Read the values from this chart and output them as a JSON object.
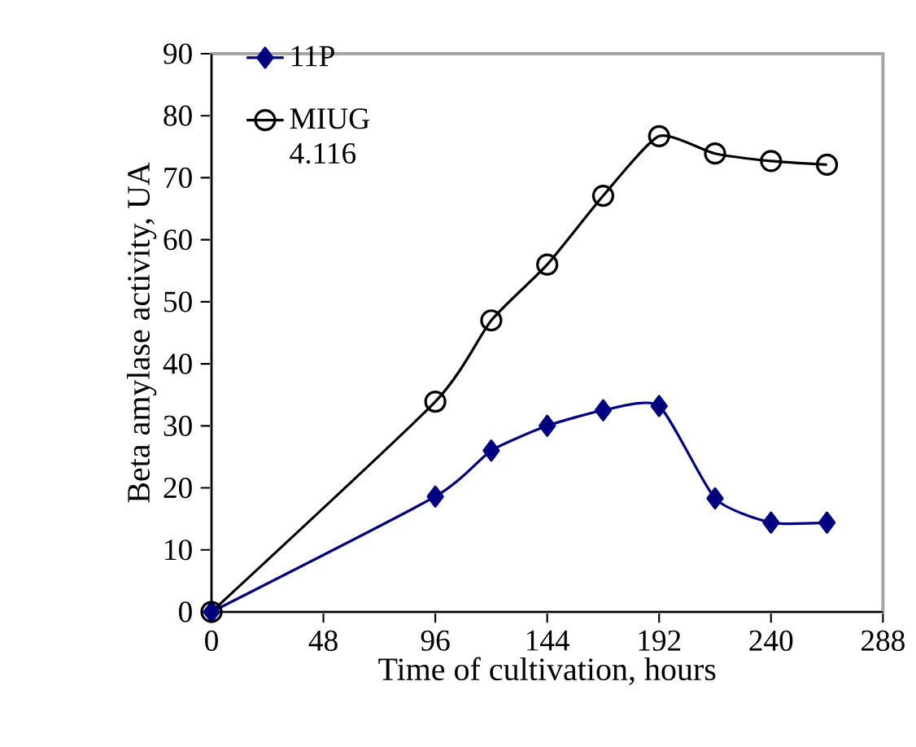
{
  "chart_data": {
    "type": "line",
    "xlabel": "Time of cultivation, hours",
    "ylabel": "Beta amylase activity, UA",
    "x": [
      0,
      96,
      120,
      144,
      168,
      192,
      216,
      240,
      264
    ],
    "series": [
      {
        "name": "11P",
        "color": "#000080",
        "marker": "diamond",
        "values": [
          0,
          18.6,
          26.0,
          30.0,
          32.5,
          33.2,
          18.3,
          14.4,
          14.4
        ]
      },
      {
        "name": "MIUG 4.116",
        "color": "#000000",
        "marker": "circle",
        "values": [
          0,
          33.9,
          47.0,
          56.0,
          67.1,
          76.7,
          73.9,
          72.7,
          72.1
        ]
      }
    ],
    "xlim": [
      0,
      288
    ],
    "xticks": [
      0,
      48,
      96,
      144,
      192,
      240,
      288
    ],
    "ylim": [
      0,
      90
    ],
    "yticks": [
      0,
      10,
      20,
      30,
      40,
      50,
      60,
      70,
      80,
      90
    ],
    "grid": false,
    "legend": "top left",
    "line_style": "solid"
  }
}
